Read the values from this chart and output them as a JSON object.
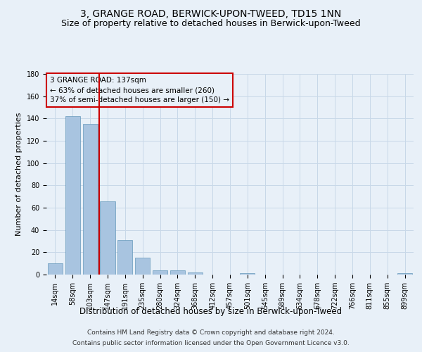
{
  "title": "3, GRANGE ROAD, BERWICK-UPON-TWEED, TD15 1NN",
  "subtitle": "Size of property relative to detached houses in Berwick-upon-Tweed",
  "xlabel": "Distribution of detached houses by size in Berwick-upon-Tweed",
  "ylabel": "Number of detached properties",
  "footer_line1": "Contains HM Land Registry data © Crown copyright and database right 2024.",
  "footer_line2": "Contains public sector information licensed under the Open Government Licence v3.0.",
  "categories": [
    "14sqm",
    "58sqm",
    "103sqm",
    "147sqm",
    "191sqm",
    "235sqm",
    "280sqm",
    "324sqm",
    "368sqm",
    "412sqm",
    "457sqm",
    "501sqm",
    "545sqm",
    "589sqm",
    "634sqm",
    "678sqm",
    "722sqm",
    "766sqm",
    "811sqm",
    "855sqm",
    "899sqm"
  ],
  "values": [
    10,
    142,
    135,
    66,
    31,
    15,
    4,
    4,
    2,
    0,
    0,
    1,
    0,
    0,
    0,
    0,
    0,
    0,
    0,
    0,
    1
  ],
  "bar_color": "#a8c4e0",
  "bar_edge_color": "#6699bb",
  "grid_color": "#c8d8e8",
  "background_color": "#e8f0f8",
  "vline_color": "#cc0000",
  "annotation_text": "3 GRANGE ROAD: 137sqm\n← 63% of detached houses are smaller (260)\n37% of semi-detached houses are larger (150) →",
  "annotation_box_color": "#cc0000",
  "ylim": [
    0,
    180
  ],
  "yticks": [
    0,
    20,
    40,
    60,
    80,
    100,
    120,
    140,
    160,
    180
  ],
  "title_fontsize": 10,
  "subtitle_fontsize": 9,
  "xlabel_fontsize": 8.5,
  "ylabel_fontsize": 8,
  "tick_fontsize": 7,
  "annot_fontsize": 7.5,
  "footer_fontsize": 6.5
}
